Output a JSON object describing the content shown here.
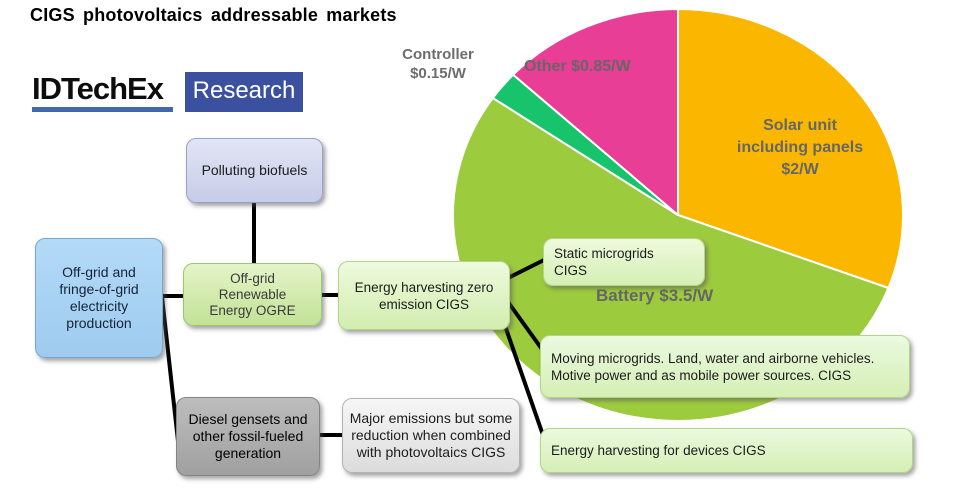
{
  "page": {
    "title": "CIGS photovoltaics addressable markets"
  },
  "logo": {
    "brand": "IDTechEx",
    "division": "Research"
  },
  "colors": {
    "logo_blue": "#3B51A0",
    "logo_underline": "#4269AE",
    "solar_orange": "#FBB700",
    "battery_green": "#9DCB3E",
    "controller_teal": "#17C36B",
    "other_pink": "#E83E95",
    "pie_label_gray": "#666666"
  },
  "chart_data": {
    "type": "pie",
    "title": "CIGS photovoltaics addressable markets",
    "unit": "$/W",
    "total": 6.5,
    "start_angle_deg": 0,
    "direction": "clockwise",
    "legend_position": "on-slice",
    "slices": [
      {
        "label": "Solar unit including panels",
        "value": 2,
        "value_label": "$2/W",
        "color": "#FBB700"
      },
      {
        "label": "Battery",
        "value": 3.5,
        "value_label": "$3.5/W",
        "color": "#9DCB3E"
      },
      {
        "label": "Controller",
        "value": 0.15,
        "value_label": "$0.15/W",
        "color": "#17C36B"
      },
      {
        "label": "Other",
        "value": 0.85,
        "value_label": "$0.85/W",
        "color": "#E83E95"
      }
    ]
  },
  "pie_labels": {
    "controller": [
      "Controller",
      "$0.15/W"
    ],
    "other": "Other $0.85/W",
    "solar": [
      "Solar unit",
      "including panels",
      "$2/W"
    ],
    "battery": "Battery $3.5/W"
  },
  "flowchart": {
    "polluting_biofuels": "Polluting biofuels",
    "offgrid_production": [
      "Off-grid and",
      "fringe-of-grid",
      "electricity",
      "production"
    ],
    "ogre": [
      "Off-grid",
      "Renewable",
      "Energy OGRE"
    ],
    "zero_emission": [
      "Energy harvesting zero",
      "emission CIGS"
    ],
    "static_microgrids": [
      "Static microgrids",
      "CIGS"
    ],
    "moving_microgrids": [
      "Moving microgrids. Land, water and airborne vehicles.",
      "Motive power and as mobile power sources. CIGS"
    ],
    "devices": "Energy harvesting for devices CIGS",
    "diesel": [
      "Diesel gensets and",
      "other fossil-fueled",
      "generation"
    ],
    "major_emissions": [
      "Major emissions but some",
      "reduction when combined",
      "with photovoltaics CIGS"
    ]
  }
}
